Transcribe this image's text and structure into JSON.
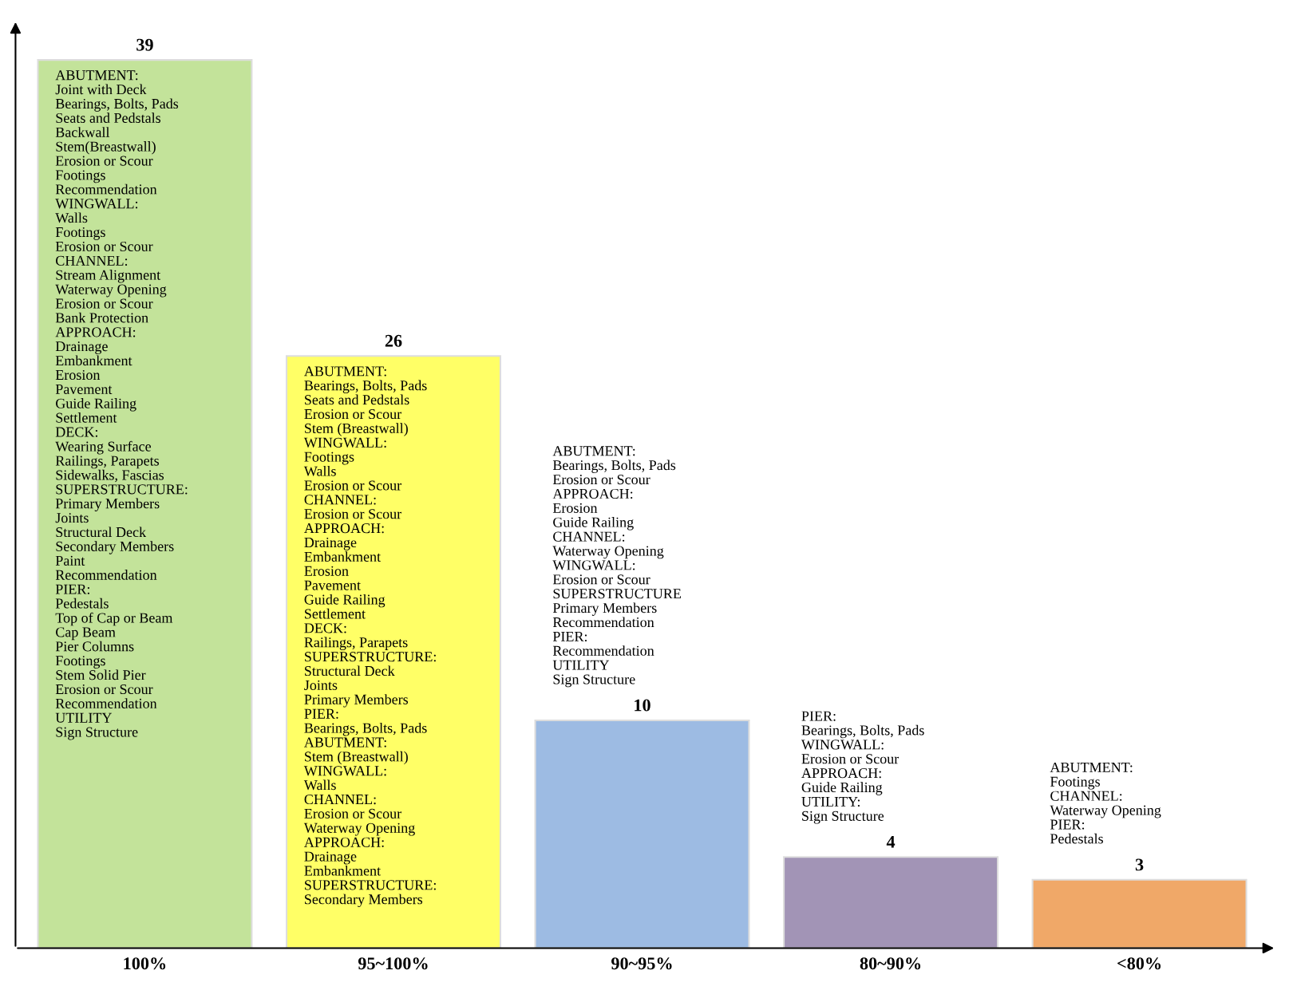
{
  "chart_data": {
    "type": "bar",
    "categories": [
      "100%",
      "95~100%",
      "90~95%",
      "80~90%",
      "<80%"
    ],
    "values": [
      39,
      26,
      10,
      4,
      3
    ],
    "colors": [
      "#c3e39a",
      "#ffff66",
      "#9dbbe3",
      "#a294b6",
      "#f0a868"
    ],
    "data_labels": true,
    "grid": false,
    "annotations": [
      "ABUTMENT:\nJoint with Deck\nBearings, Bolts, Pads\nSeats and Pedstals\nBackwall\nStem(Breastwall)\nErosion or Scour\nFootings\nRecommendation\nWINGWALL:\nWalls\nFootings\nErosion or Scour\nCHANNEL:\nStream Alignment\nWaterway Opening\nErosion or Scour\nBank Protection\nAPPROACH:\nDrainage\nEmbankment\nErosion\nPavement\nGuide Railing\nSettlement\nDECK:\nWearing Surface\nRailings, Parapets\nSidewalks, Fascias\nSUPERSTRUCTURE:\nPrimary Members\nJoints\nStructural Deck\nSecondary Members\nPaint\nRecommendation\nPIER:\nPedestals\nTop of Cap or Beam\nCap Beam\nPier Columns\nFootings\nStem Solid Pier\nErosion or Scour\nRecommendation\nUTILITY\nSign Structure",
      "ABUTMENT:\nBearings, Bolts, Pads\nSeats and Pedstals\nErosion or Scour\nStem (Breastwall)\nWINGWALL:\nFootings\nWalls\nErosion or Scour\nCHANNEL:\nErosion or Scour\nAPPROACH:\nDrainage\nEmbankment\nErosion\nPavement\nGuide Railing\nSettlement\nDECK:\nRailings, Parapets\nSUPERSTRUCTURE:\nStructural Deck\nJoints\nPrimary Members\nPIER:\nBearings, Bolts, Pads\nABUTMENT:\nStem (Breastwall)\nWINGWALL:\nWalls\nCHANNEL:\nErosion or Scour\nWaterway Opening\nAPPROACH:\nDrainage\nEmbankment\nSUPERSTRUCTURE:\nSecondary Members",
      "ABUTMENT:\nBearings, Bolts, Pads\nErosion or Scour\nAPPROACH:\nErosion\nGuide Railing\nCHANNEL:\nWaterway Opening\nWINGWALL:\nErosion or Scour\nSUPERSTRUCTURE\nPrimary Members\nRecommendation\nPIER:\nRecommendation\nUTILITY\nSign Structure",
      "PIER:\nBearings, Bolts, Pads\nWINGWALL:\nErosion or Scour\nAPPROACH:\nGuide Railing\nUTILITY:\nSign Structure",
      "ABUTMENT:\nFootings\nCHANNEL:\nWaterway Opening\nPIER:\nPedestals"
    ]
  }
}
